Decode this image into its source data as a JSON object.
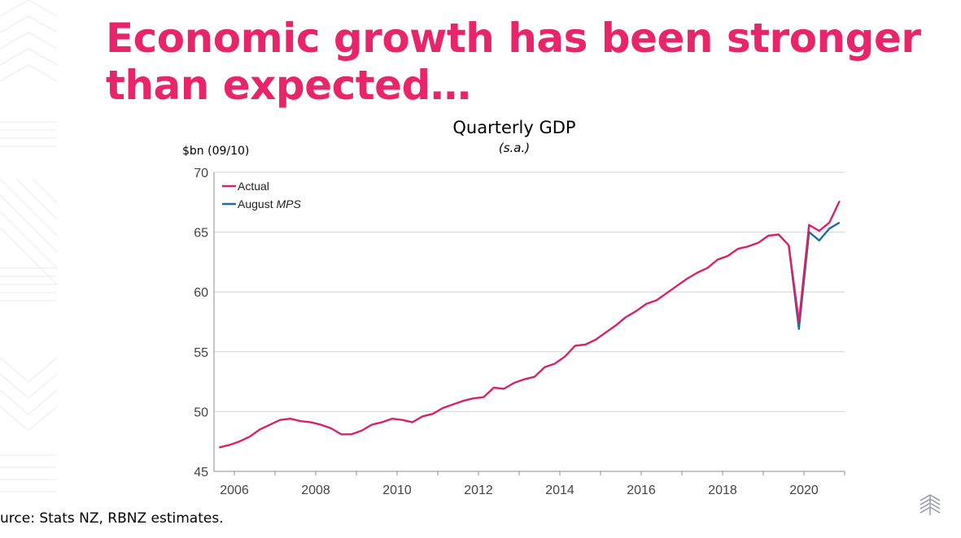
{
  "slide": {
    "title": "Economic growth has been stronger than expected…",
    "source": "urce: Stats NZ, RBNZ estimates.",
    "accent_color": "#e8246a"
  },
  "chart_data": {
    "type": "line",
    "title": "Quarterly GDP",
    "subtitle": "(s.a.)",
    "ylabel": "$bn (09/10)",
    "ylim": [
      45,
      70
    ],
    "yticks": [
      45,
      50,
      55,
      60,
      65,
      70
    ],
    "xlim": [
      2005.5,
      2021.0
    ],
    "xticks": [
      "2006",
      "2008",
      "2010",
      "2012",
      "2014",
      "2016",
      "2018",
      "2020"
    ],
    "grid": true,
    "legend_position": "top-left",
    "legend": [
      {
        "label": "Actual",
        "label_italic": "",
        "color": "#d6226a"
      },
      {
        "label": "August ",
        "label_italic": "MPS",
        "color": "#1f6e9c"
      }
    ],
    "series": [
      {
        "name": "Actual",
        "color": "#d6226a",
        "x": [
          2005.625,
          2005.875,
          2006.125,
          2006.375,
          2006.625,
          2006.875,
          2007.125,
          2007.375,
          2007.625,
          2007.875,
          2008.125,
          2008.375,
          2008.625,
          2008.875,
          2009.125,
          2009.375,
          2009.625,
          2009.875,
          2010.125,
          2010.375,
          2010.625,
          2010.875,
          2011.125,
          2011.375,
          2011.625,
          2011.875,
          2012.125,
          2012.375,
          2012.625,
          2012.875,
          2013.125,
          2013.375,
          2013.625,
          2013.875,
          2014.125,
          2014.375,
          2014.625,
          2014.875,
          2015.125,
          2015.375,
          2015.625,
          2015.875,
          2016.125,
          2016.375,
          2016.625,
          2016.875,
          2017.125,
          2017.375,
          2017.625,
          2017.875,
          2018.125,
          2018.375,
          2018.625,
          2018.875,
          2019.125,
          2019.375,
          2019.625,
          2019.875,
          2020.125,
          2020.375,
          2020.625,
          2020.875
        ],
        "values": [
          47.0,
          47.2,
          47.5,
          47.9,
          48.5,
          48.9,
          49.3,
          49.4,
          49.2,
          49.1,
          48.9,
          48.6,
          48.1,
          48.1,
          48.4,
          48.9,
          49.1,
          49.4,
          49.3,
          49.1,
          49.6,
          49.8,
          50.3,
          50.6,
          50.9,
          51.1,
          51.2,
          52.0,
          51.9,
          52.4,
          52.7,
          52.9,
          53.7,
          54.0,
          54.6,
          55.5,
          55.6,
          56.0,
          56.6,
          57.2,
          57.9,
          58.4,
          59.0,
          59.3,
          59.9,
          60.5,
          61.1,
          61.6,
          62.0,
          62.7,
          63.0,
          63.6,
          63.8,
          64.1,
          64.7,
          64.8,
          63.9,
          57.5,
          65.6,
          65.1,
          65.8,
          67.6
        ]
      },
      {
        "name": "August MPS",
        "color": "#1f6e9c",
        "x": [
          2019.625,
          2019.875,
          2020.125,
          2020.375,
          2020.625,
          2020.875
        ],
        "values": [
          63.9,
          56.9,
          65.0,
          64.3,
          65.3,
          65.8
        ]
      }
    ]
  }
}
